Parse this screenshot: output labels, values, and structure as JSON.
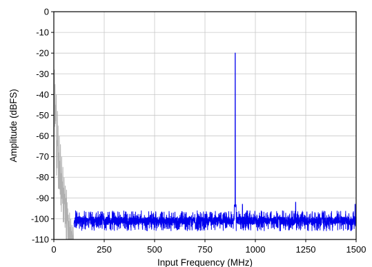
{
  "chart_data": {
    "type": "line",
    "title": "",
    "xlabel": "Input Frequency (MHz)",
    "ylabel": "Amplitude (dBFS)",
    "xlim": [
      0,
      1500
    ],
    "ylim": [
      -110,
      0
    ],
    "xticks": [
      0,
      250,
      500,
      750,
      1000,
      1250,
      1500
    ],
    "yticks": [
      0,
      -10,
      -20,
      -30,
      -40,
      -50,
      -60,
      -70,
      -80,
      -90,
      -100,
      -110
    ],
    "grid": true,
    "legend": "none",
    "series": [
      {
        "color": "#b0b0b0",
        "x": [
          0,
          3,
          6,
          9,
          12,
          15,
          18,
          21,
          24,
          27,
          30,
          33,
          36,
          39,
          42,
          45,
          48,
          51,
          54,
          57,
          60,
          63,
          66,
          69,
          72,
          75,
          78,
          81,
          84,
          87,
          90,
          93,
          96,
          99,
          100
        ],
        "y": [
          -110,
          -28,
          -35,
          -45,
          -40,
          -62,
          -48,
          -55,
          -68,
          -60,
          -72,
          -64,
          -78,
          -70,
          -82,
          -75,
          -85,
          -80,
          -88,
          -84,
          -90,
          -86,
          -92,
          -95,
          -98,
          -101,
          -97,
          -104,
          -100,
          -106,
          -103,
          -108,
          -104,
          -110,
          -110
        ]
      },
      {
        "color": "#0000ee",
        "noise_floor": -101,
        "x": [
          100,
          900,
          936,
          1200,
          1495
        ],
        "y": [
          -101,
          -20,
          -93,
          -92,
          -93
        ]
      }
    ],
    "annotations": []
  },
  "colors": {
    "primary_series": "#0000ee",
    "secondary_series": "#b0b0b0",
    "grid": "#c8c8c8",
    "frame": "#000000"
  }
}
